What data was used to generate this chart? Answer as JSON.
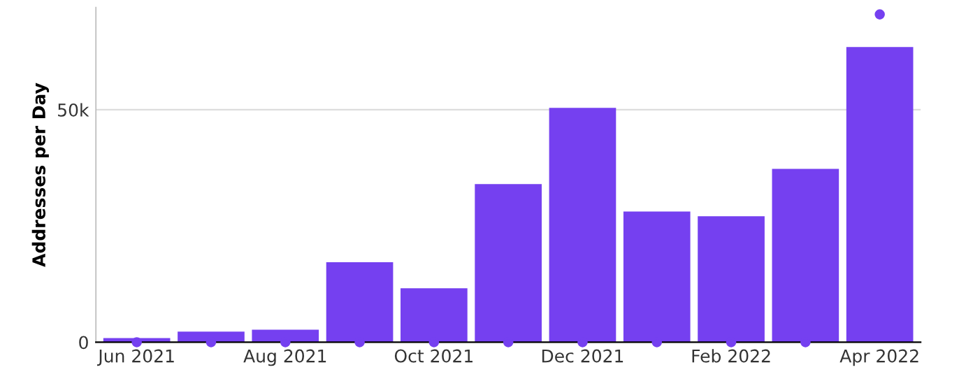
{
  "chart_data": {
    "type": "bar",
    "ylabel": "Addresses per Day",
    "categories": [
      "Jun 2021",
      null,
      "Aug 2021",
      null,
      "Oct 2021",
      null,
      "Dec 2021",
      null,
      "Feb 2022",
      null,
      "Apr 2022"
    ],
    "series": [
      {
        "color": "#7540f0",
        "values": [
          900,
          2300,
          2700,
          17200,
          11600,
          34000,
          50400,
          28100,
          27100,
          37300,
          63500
        ]
      },
      {
        "type": "scatter",
        "color": "#7540f0",
        "values": [
          0,
          0,
          0,
          0,
          0,
          0,
          0,
          0,
          0,
          0,
          70500
        ]
      }
    ],
    "ylim": [
      0,
      72000
    ],
    "yticks": [
      0,
      {
        "value": 50000,
        "label": "50k"
      }
    ],
    "grid": "y",
    "legend": false,
    "marker": "circle"
  }
}
